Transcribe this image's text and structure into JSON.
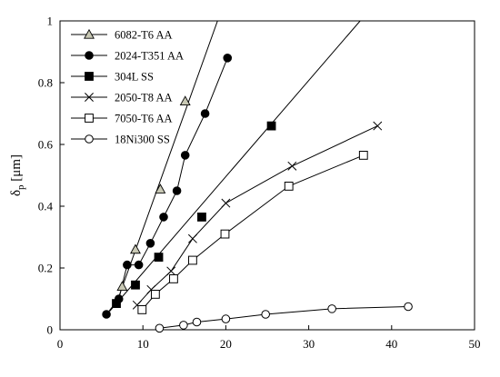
{
  "chart_data": {
    "type": "line",
    "title": "",
    "xlabel": "",
    "ylabel": "δp [μm]",
    "ylabel_main": "δ",
    "ylabel_sub": "p",
    "ylabel_rest": " [μm]",
    "xlim": [
      0,
      50
    ],
    "ylim": [
      0,
      1
    ],
    "x_ticks": [
      0,
      10,
      20,
      30,
      40,
      50
    ],
    "y_ticks": [
      0,
      0.2,
      0.4,
      0.6,
      0.8,
      1
    ],
    "x_tick_labels": [
      "0",
      "10",
      "20",
      "30",
      "40",
      "50"
    ],
    "y_tick_labels": [
      "0",
      "0.2",
      "0.4",
      "0.6",
      "0.8",
      "1"
    ],
    "grid": false,
    "legend": "top-left",
    "series": [
      {
        "name": "6082-T6 AA",
        "marker": "triangle",
        "color": "#000000",
        "marker_fill": "#c8c8b4",
        "x": [
          7.5,
          9.1,
          12.1,
          15.1
        ],
        "y": [
          0.14,
          0.26,
          0.455,
          0.74
        ],
        "trend": {
          "x": [
            7.0,
            19.0
          ],
          "y": [
            0.1,
            1.0
          ]
        }
      },
      {
        "name": "2024-T351 AA",
        "marker": "circle",
        "color": "#000000",
        "marker_fill": "#000000",
        "x": [
          5.6,
          7.1,
          8.1,
          9.5,
          10.9,
          12.5,
          14.1,
          15.1,
          17.5,
          20.2
        ],
        "y": [
          0.05,
          0.1,
          0.21,
          0.21,
          0.28,
          0.365,
          0.45,
          0.565,
          0.7,
          0.88
        ]
      },
      {
        "name": "304L SS",
        "marker": "square",
        "color": "#000000",
        "marker_fill": "#000000",
        "x": [
          6.8,
          9.1,
          11.9,
          17.1,
          25.5
        ],
        "y": [
          0.085,
          0.145,
          0.235,
          0.365,
          0.66
        ],
        "trend": {
          "x": [
            6.0,
            36.2
          ],
          "y": [
            0.06,
            1.0
          ]
        }
      },
      {
        "name": "2050-T8 AA",
        "marker": "x",
        "color": "#000000",
        "marker_fill": "none",
        "x": [
          9.3,
          11.0,
          13.4,
          16.0,
          20.0,
          28.0,
          38.3
        ],
        "y": [
          0.08,
          0.13,
          0.19,
          0.295,
          0.41,
          0.53,
          0.66
        ]
      },
      {
        "name": "7050-T6 AA",
        "marker": "open-square",
        "color": "#000000",
        "marker_fill": "#ffffff",
        "x": [
          9.9,
          11.5,
          13.7,
          16.0,
          19.9,
          27.6,
          36.6
        ],
        "y": [
          0.065,
          0.115,
          0.165,
          0.225,
          0.31,
          0.465,
          0.565
        ]
      },
      {
        "name": "18Ni300 SS",
        "marker": "open-circle",
        "color": "#000000",
        "marker_fill": "#ffffff",
        "x": [
          12.0,
          14.9,
          16.5,
          20.0,
          24.8,
          32.8,
          42.0
        ],
        "y": [
          0.005,
          0.015,
          0.025,
          0.035,
          0.05,
          0.068,
          0.075
        ]
      }
    ]
  }
}
